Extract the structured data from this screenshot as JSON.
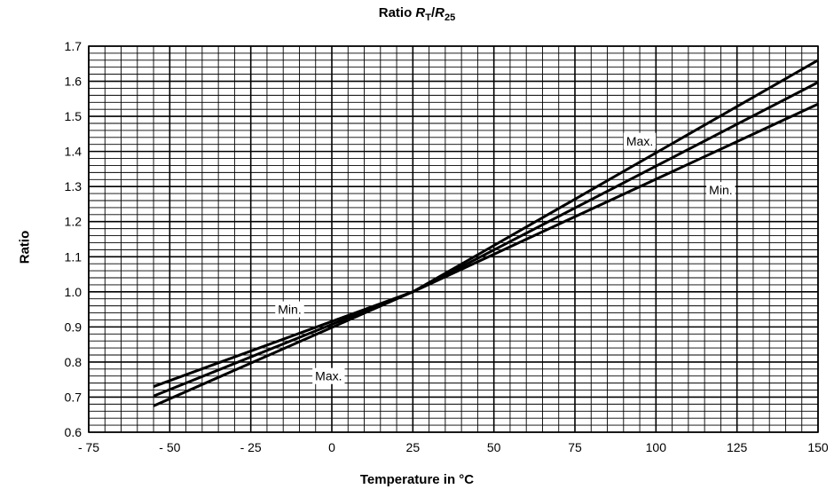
{
  "chart_data": {
    "type": "line",
    "title_prefix": "Ratio ",
    "title_r1": "R",
    "title_r1_sub": "T",
    "title_slash": "/",
    "title_r2": "R",
    "title_r2_sub": "25",
    "xlabel": "Temperature in °C",
    "ylabel": "Ratio",
    "xlim": [
      -75,
      150
    ],
    "ylim": [
      0.6,
      1.7
    ],
    "x_ticks": [
      -75,
      -50,
      -25,
      0,
      25,
      50,
      75,
      100,
      125,
      150
    ],
    "x_tick_labels": [
      "- 75",
      "- 50",
      "- 25",
      "0",
      "25",
      "50",
      "75",
      "100",
      "125",
      "150"
    ],
    "y_ticks": [
      0.6,
      0.7,
      0.8,
      0.9,
      1.0,
      1.1,
      1.2,
      1.3,
      1.4,
      1.5,
      1.6,
      1.7
    ],
    "y_tick_labels": [
      "0.6",
      "0.7",
      "0.8",
      "0.9",
      "1.0",
      "1.1",
      "1.2",
      "1.3",
      "1.4",
      "1.5",
      "1.6",
      "1.7"
    ],
    "grid": true,
    "series": [
      {
        "name": "Max.",
        "x": [
          -55,
          25,
          150
        ],
        "y": [
          0.675,
          1.0,
          1.66
        ]
      },
      {
        "name": "",
        "x": [
          -55,
          25,
          150
        ],
        "y": [
          0.703,
          1.0,
          1.597
        ]
      },
      {
        "name": "Min.",
        "x": [
          -55,
          25,
          150
        ],
        "y": [
          0.73,
          1.0,
          1.535
        ]
      }
    ],
    "annotations": [
      {
        "text": "Max.",
        "x": 95,
        "y": 1.43
      },
      {
        "text": "Min.",
        "x": 120,
        "y": 1.29
      },
      {
        "text": "Min.",
        "x": -13,
        "y": 0.95
      },
      {
        "text": "Max.",
        "x": -1,
        "y": 0.76
      }
    ]
  }
}
